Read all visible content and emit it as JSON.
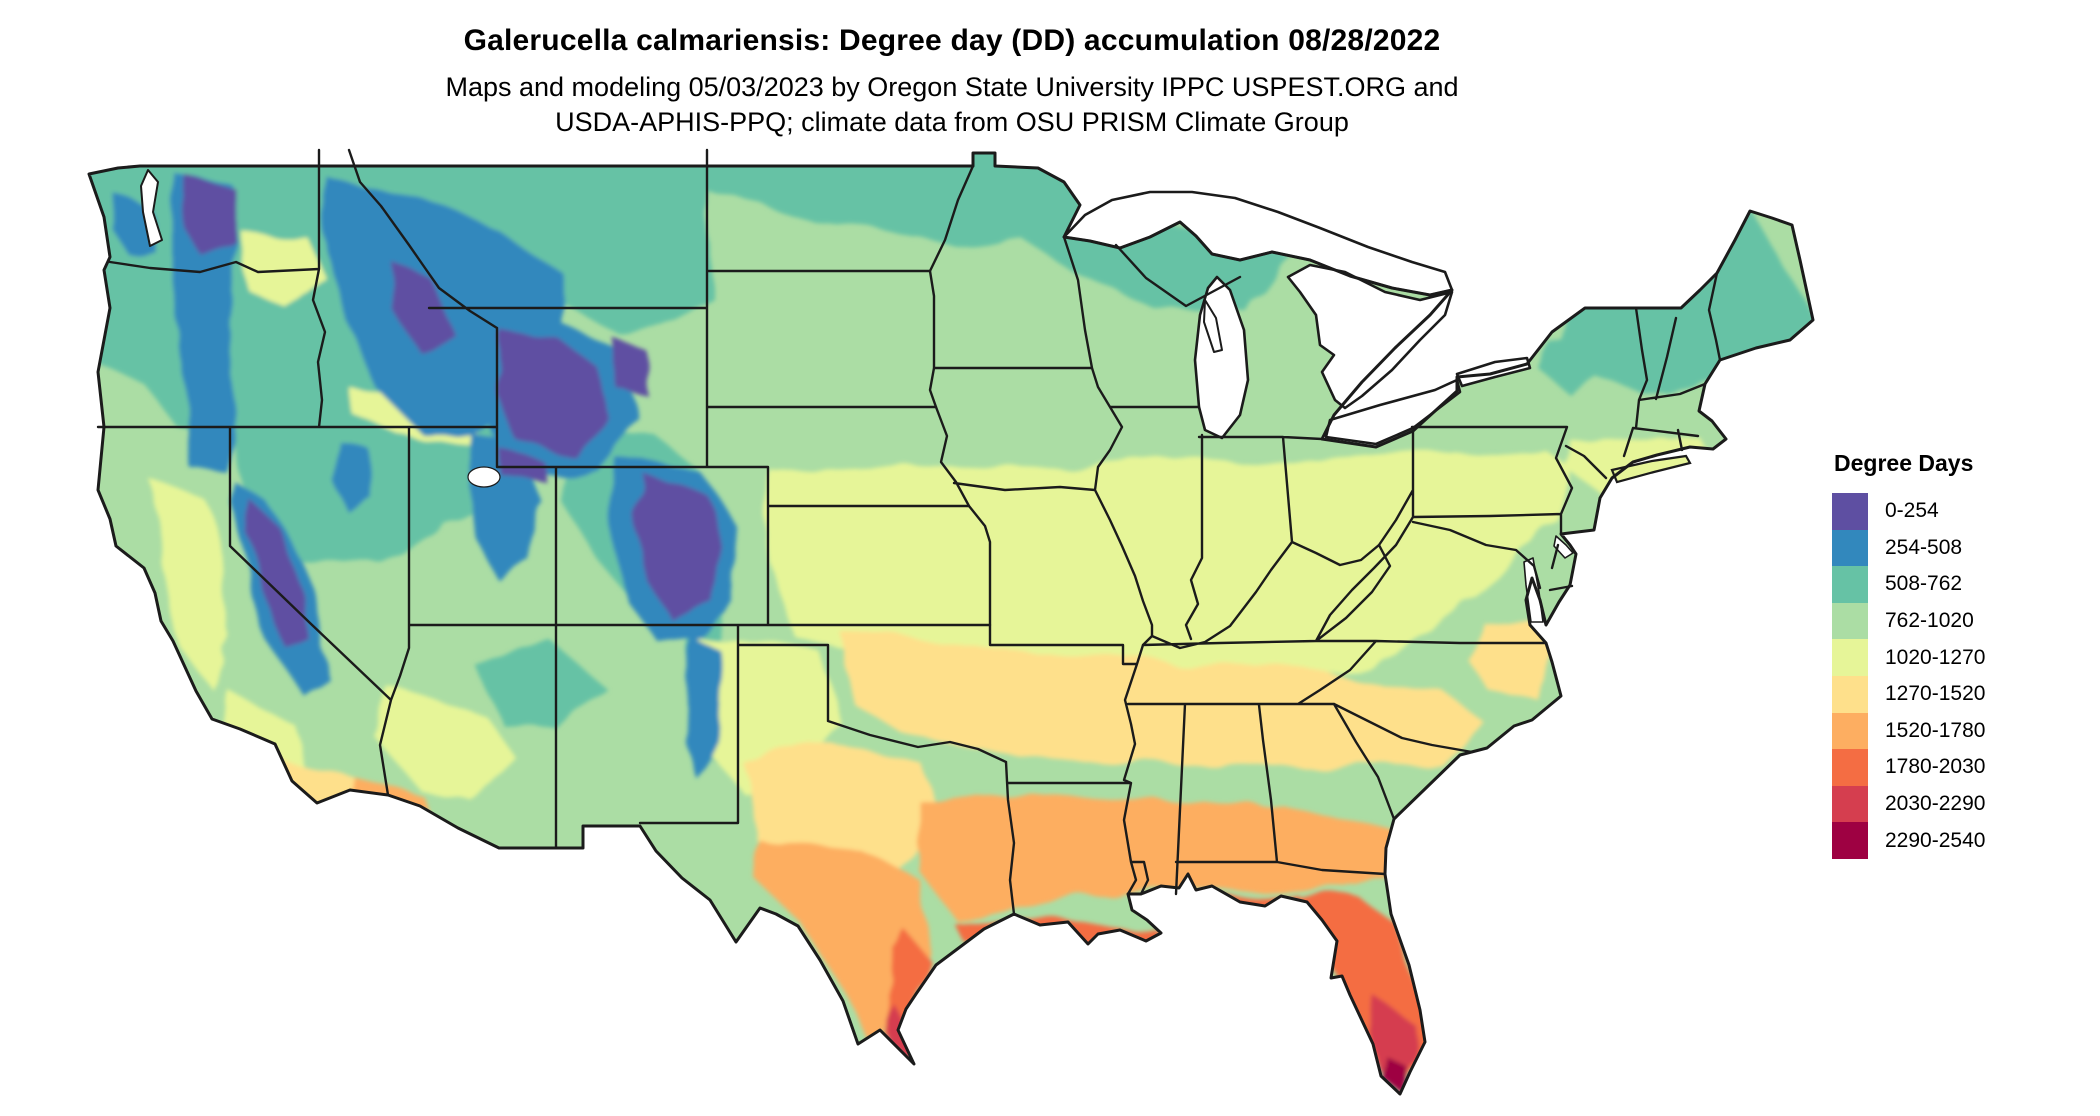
{
  "header": {
    "title": "Galerucella calmariensis: Degree day (DD) accumulation 08/28/2022",
    "subtitle_line1": "Maps and modeling 05/03/2023 by Oregon State University IPPC USPEST.ORG and",
    "subtitle_line2": "USDA-APHIS-PPQ; climate data from OSU PRISM Climate Group"
  },
  "legend": {
    "title": "Degree Days",
    "items": [
      {
        "label": "0-254",
        "color": "#5e4fa2"
      },
      {
        "label": "254-508",
        "color": "#3288bd"
      },
      {
        "label": "508-762",
        "color": "#66c2a5"
      },
      {
        "label": "762-1020",
        "color": "#abdda4"
      },
      {
        "label": "1020-1270",
        "color": "#e6f598"
      },
      {
        "label": "1270-1520",
        "color": "#fee08b"
      },
      {
        "label": "1520-1780",
        "color": "#fdae61"
      },
      {
        "label": "1780-2030",
        "color": "#f46d43"
      },
      {
        "label": "2030-2290",
        "color": "#d53e4f"
      },
      {
        "label": "2290-2540",
        "color": "#9e0142"
      }
    ]
  },
  "map": {
    "region": "Contiguous United States",
    "kind": "degree-day accumulation raster",
    "base_color": "#abdda4",
    "border_color": "#1b1b1b",
    "water_color": "#ffffff"
  }
}
